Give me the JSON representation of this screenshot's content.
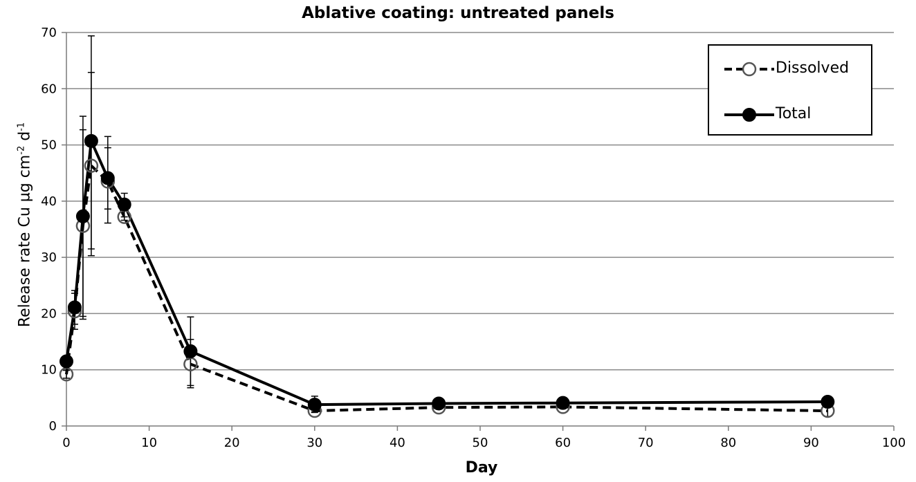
{
  "chart_data": {
    "type": "line",
    "title": "Ablative coating: untreated panels",
    "xlabel": "Day",
    "ylabel_main": "Release rate Cu µg cm",
    "ylabel_exp1": "-2",
    "ylabel_mid": " d",
    "ylabel_exp2": "-1",
    "xlim": [
      0,
      100
    ],
    "ylim": [
      0,
      70
    ],
    "xticks": [
      0,
      10,
      20,
      30,
      40,
      50,
      60,
      70,
      80,
      90,
      100
    ],
    "yticks": [
      0,
      10,
      20,
      30,
      40,
      50,
      60,
      70
    ],
    "grid": "horizontal",
    "legend_position": "top-right",
    "series": [
      {
        "name": "Dissolved",
        "style": "dashed",
        "marker": "open-circle",
        "color": "#000000",
        "x": [
          0,
          1,
          2,
          3,
          5,
          7,
          15,
          30,
          45,
          60,
          92
        ],
        "y": [
          9.2,
          20.4,
          35.6,
          46.3,
          43.5,
          37.2,
          11.0,
          2.7,
          3.3,
          3.4,
          2.7
        ],
        "yerr_low": [
          8.5,
          17.2,
          19.0,
          30.3,
          36.1,
          36.6,
          6.8,
          2.5,
          3.0,
          3.1,
          1.7
        ],
        "yerr_high": [
          9.9,
          23.6,
          52.7,
          62.9,
          49.5,
          38.6,
          15.4,
          2.9,
          3.6,
          3.7,
          3.6
        ]
      },
      {
        "name": "Total",
        "style": "solid",
        "marker": "filled-circle",
        "color": "#000000",
        "x": [
          0,
          1,
          2,
          3,
          5,
          7,
          15,
          30,
          45,
          60,
          92
        ],
        "y": [
          11.5,
          21.1,
          37.3,
          50.7,
          44.1,
          39.4,
          13.3,
          3.8,
          4.0,
          4.1,
          4.3
        ],
        "yerr_low": [
          10.8,
          18.1,
          19.5,
          31.5,
          38.6,
          37.2,
          7.2,
          2.4,
          3.2,
          3.3,
          4.0
        ],
        "yerr_high": [
          12.2,
          24.1,
          55.1,
          69.4,
          51.5,
          41.4,
          19.4,
          5.3,
          4.9,
          4.8,
          4.6
        ]
      }
    ]
  }
}
